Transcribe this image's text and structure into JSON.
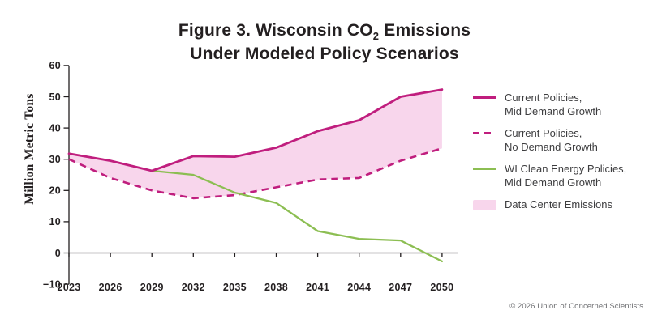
{
  "header": {
    "title_prefix": "Figure 3. Wisconsin CO",
    "title_sub": "2",
    "title_suffix": " Emissions",
    "title_line2": "Under Modeled Policy Scenarios"
  },
  "colors": {
    "magenta": "#C01E7E",
    "green": "#8CBE52",
    "fill_pink": "#F8D6EC",
    "axis": "#231F20",
    "legend_text": "#3D3D3F",
    "footer_text": "#6D6E71"
  },
  "chart_data": {
    "type": "line",
    "title": "Figure 3. Wisconsin CO2 Emissions Under Modeled Policy Scenarios",
    "ylabel": "Million Metric Tons",
    "xlabel": "",
    "ylim": [
      -10,
      60
    ],
    "yticks": [
      60,
      50,
      40,
      30,
      20,
      10,
      0,
      -10
    ],
    "ytick_labels": [
      "60",
      "50",
      "40",
      "30",
      "20",
      "10",
      "0",
      "−10"
    ],
    "grid": false,
    "legend_position": "right",
    "x": [
      2023,
      2026,
      2029,
      2032,
      2035,
      2038,
      2041,
      2044,
      2047,
      2050
    ],
    "series": [
      {
        "name": "Current Policies, Mid Demand Growth",
        "style": "solid",
        "color": "#C01E7E",
        "values": [
          31.8,
          29.5,
          26.3,
          31,
          30.8,
          33.7,
          39,
          42.5,
          50,
          52.3
        ]
      },
      {
        "name": "Current Policies, No Demand Growth",
        "style": "dashed",
        "color": "#C01E7E",
        "values": [
          30,
          24,
          20,
          17.5,
          18.5,
          21,
          23.5,
          24,
          29.5,
          33.5
        ]
      },
      {
        "name": "WI Clean Energy Policies, Mid Demand Growth",
        "style": "solid",
        "color": "#8CBE52",
        "values": [
          null,
          null,
          26.3,
          25,
          19.3,
          16,
          7,
          4.5,
          4,
          -2.7
        ]
      }
    ],
    "fill_between": {
      "upper": 0,
      "lower": 1,
      "label": "Data Center Emissions",
      "color": "#F8D6EC"
    }
  },
  "legend": {
    "items": [
      {
        "line1": "Current Policies,",
        "line2": "Mid Demand Growth",
        "icon": "solid-magenta-line"
      },
      {
        "line1": "Current Policies,",
        "line2": "No Demand Growth",
        "icon": "dashed-magenta-line"
      },
      {
        "line1": "WI Clean Energy Policies,",
        "line2": "Mid Demand Growth",
        "icon": "solid-green-line"
      },
      {
        "line1": "Data Center Emissions",
        "icon": "pink-area-swatch"
      }
    ]
  },
  "footer": {
    "credit": "© 2026 Union of Concerned Scientists"
  }
}
